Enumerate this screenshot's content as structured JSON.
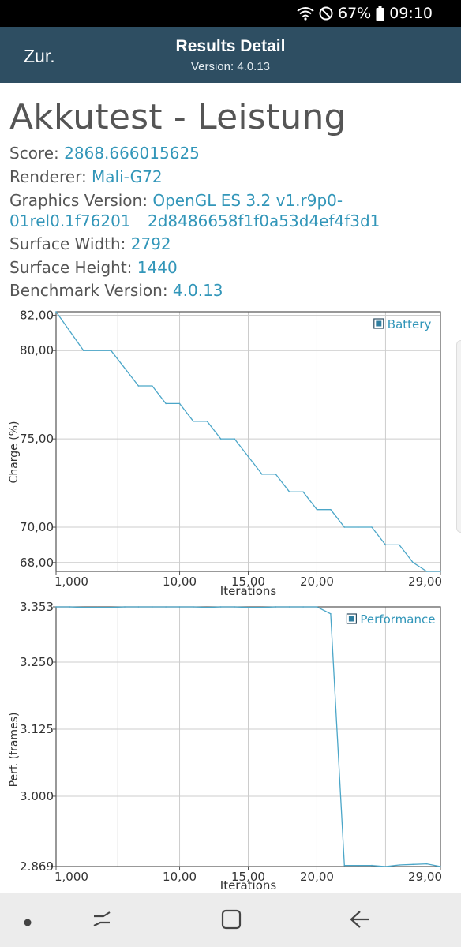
{
  "status_bar": {
    "battery_percent": "67%",
    "time": "09:10"
  },
  "header": {
    "back_label": "Zur.",
    "title": "Results Detail",
    "subtitle": "Version: 4.0.13"
  },
  "details": {
    "title": "Akkutest - Leistung",
    "score_label": "Score: ",
    "score_value": "2868.666015625",
    "renderer_label": "Renderer: ",
    "renderer_value": "Mali-G72",
    "graphics_label": "Graphics Version: ",
    "graphics_value_line1": "OpenGL ES 3.2 v1.r9p0-01rel0.1f76201",
    "graphics_value_line2": "2d8486658f1f0a53d4ef4f3d1",
    "width_label": "Surface Width: ",
    "width_value": "2792",
    "height_label": "Surface Height: ",
    "height_value": "1440",
    "bench_label": "Benchmark Version: ",
    "bench_value": "4.0.13"
  },
  "colors": {
    "line": "#4ba6c8",
    "label": "#3296b9",
    "header_bg": "#2e4e62"
  },
  "chart_data": [
    {
      "type": "line",
      "title": "",
      "xlabel": "Iterations",
      "ylabel": "Charge (%)",
      "legend": "Battery",
      "legend_position": "top-right",
      "grid": true,
      "xlim": [
        1,
        29
      ],
      "ylim": [
        67.5,
        82.2
      ],
      "x_ticks": [
        "1,000",
        "10,00",
        "15,00",
        "20,00",
        "29,00"
      ],
      "x_tick_values": [
        1,
        10,
        15,
        20,
        29
      ],
      "y_ticks": [
        "82,00",
        "80,00",
        "75,00",
        "70,00",
        "68,00"
      ],
      "y_tick_values": [
        82,
        80,
        75,
        70,
        68
      ],
      "series": [
        {
          "name": "Battery",
          "x": [
            1,
            3,
            5,
            7,
            8,
            9,
            10,
            11,
            12,
            13,
            14,
            15,
            16,
            17,
            18,
            19,
            20,
            21,
            22,
            23,
            24,
            25,
            26,
            27,
            28,
            29
          ],
          "y": [
            82.2,
            80,
            80,
            78,
            78,
            77,
            77,
            76,
            76,
            75,
            75,
            74,
            73,
            73,
            72,
            72,
            71,
            71,
            70,
            70,
            70,
            69,
            69,
            68,
            67.5,
            67.5
          ]
        }
      ]
    },
    {
      "type": "line",
      "title": "",
      "xlabel": "Iterations",
      "ylabel": "Perf. (frames)",
      "legend": "Performance",
      "legend_position": "top-right",
      "grid": true,
      "xlim": [
        1,
        29
      ],
      "ylim": [
        2.869,
        3.353
      ],
      "x_ticks": [
        "1,000",
        "10,00",
        "15,00",
        "20,00",
        "29,00"
      ],
      "x_tick_values": [
        1,
        10,
        15,
        20,
        29
      ],
      "y_ticks": [
        "3.353",
        "3.250",
        "3.125",
        "3.000",
        "2.869"
      ],
      "y_tick_values": [
        3.353,
        3.25,
        3.125,
        3.0,
        2.869
      ],
      "series": [
        {
          "name": "Performance",
          "x": [
            1,
            2,
            3,
            4,
            5,
            6,
            7,
            8,
            9,
            10,
            11,
            12,
            13,
            14,
            15,
            16,
            17,
            18,
            19,
            20,
            21,
            22,
            23,
            24,
            25,
            26,
            27,
            28,
            29
          ],
          "y": [
            3.353,
            3.353,
            3.352,
            3.352,
            3.352,
            3.353,
            3.353,
            3.353,
            3.353,
            3.353,
            3.353,
            3.352,
            3.353,
            3.353,
            3.352,
            3.352,
            3.353,
            3.353,
            3.353,
            3.353,
            3.34,
            2.871,
            2.871,
            2.871,
            2.869,
            2.872,
            2.873,
            2.874,
            2.869
          ]
        }
      ]
    }
  ]
}
